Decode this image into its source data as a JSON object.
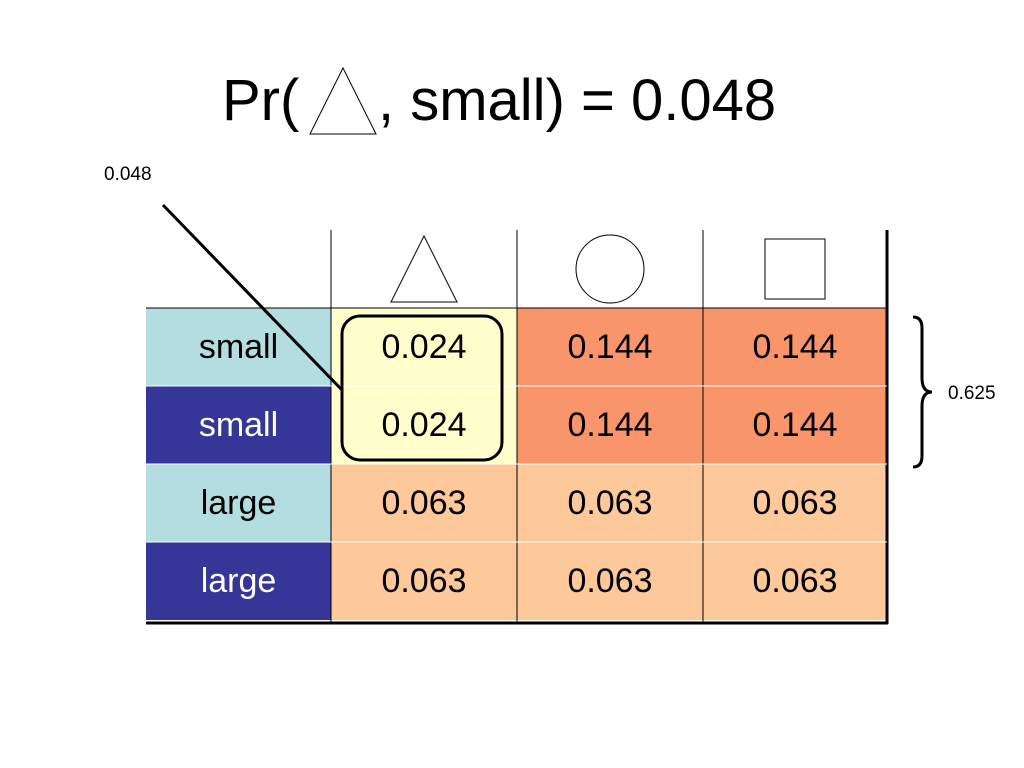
{
  "title": {
    "prefix": "Pr(",
    "shape_icon": "triangle-icon",
    "suffix": ", small) = 0.048"
  },
  "callout": {
    "value": "0.048"
  },
  "brace": {
    "value": "0.625"
  },
  "table": {
    "header_icons": [
      "triangle-icon",
      "circle-icon",
      "square-icon"
    ],
    "rows": [
      {
        "label": "small",
        "label_style": "light",
        "values": [
          "0.024",
          "0.144",
          "0.144"
        ]
      },
      {
        "label": "small",
        "label_style": "dark",
        "values": [
          "0.024",
          "0.144",
          "0.144"
        ]
      },
      {
        "label": "large",
        "label_style": "light",
        "values": [
          "0.063",
          "0.063",
          "0.063"
        ]
      },
      {
        "label": "large",
        "label_style": "dark",
        "values": [
          "0.063",
          "0.063",
          "0.063"
        ]
      }
    ]
  },
  "colors": {
    "label_light": "#b4dde1",
    "label_dark": "#363699",
    "highlight_cell": "#ffffcc",
    "small_cell": "#f9956a",
    "large_cell": "#fdc99b"
  }
}
